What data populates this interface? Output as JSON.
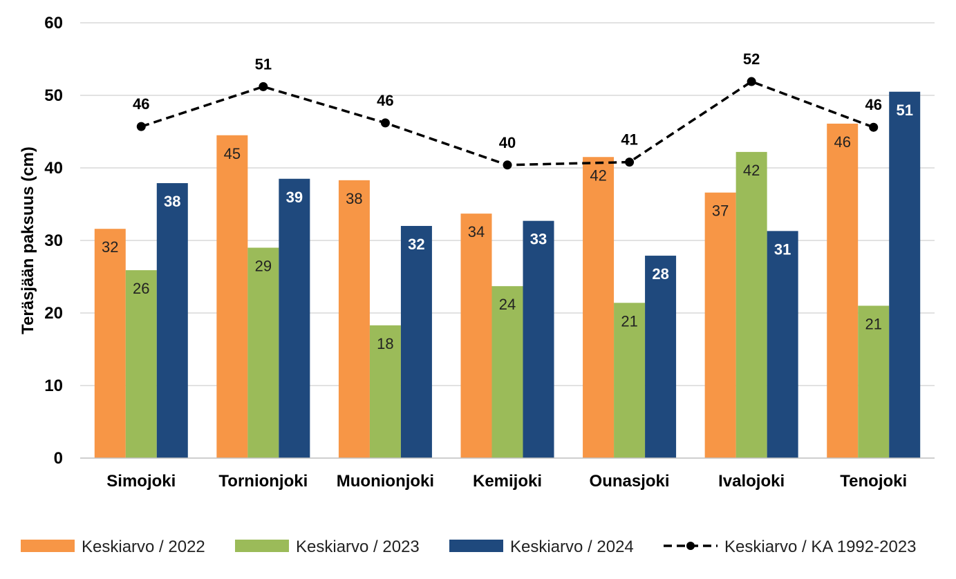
{
  "chart_data": {
    "type": "bar",
    "ylabel": "Teräsjään paksuus (cm)",
    "ylim": [
      0,
      60
    ],
    "yticks": [
      0,
      10,
      20,
      30,
      40,
      50,
      60
    ],
    "grid": true,
    "legend_position": "bottom",
    "categories": [
      "Simojoki",
      "Tornionjoki",
      "Muonionjoki",
      "Kemijoki",
      "Ounasjoki",
      "Ivalojoki",
      "Tenojoki"
    ],
    "series": [
      {
        "name": "Keskiarvo  / 2022",
        "kind": "bar",
        "color": "#F79646",
        "values": [
          31.6,
          44.5,
          38.3,
          33.7,
          41.5,
          36.6,
          46.1
        ],
        "labels": [
          "32",
          "45",
          "38",
          "34",
          "42",
          "37",
          "46"
        ]
      },
      {
        "name": "Keskiarvo  / 2023",
        "kind": "bar",
        "color": "#9BBB59",
        "values": [
          25.9,
          29.0,
          18.3,
          23.7,
          21.4,
          42.2,
          21.0
        ],
        "labels": [
          "26",
          "29",
          "18",
          "24",
          "21",
          "42",
          "21"
        ]
      },
      {
        "name": "Keskiarvo  / 2024",
        "kind": "bar",
        "color": "#1F497D",
        "values": [
          37.9,
          38.5,
          32.0,
          32.7,
          27.9,
          31.3,
          50.5
        ],
        "labels": [
          "38",
          "39",
          "32",
          "33",
          "28",
          "31",
          "51"
        ]
      },
      {
        "name": "Keskiarvo  / KA 1992-2023",
        "kind": "line",
        "color": "#000000",
        "values": [
          45.7,
          51.2,
          46.2,
          40.4,
          40.8,
          51.9,
          45.6
        ],
        "labels": [
          "46",
          "51",
          "46",
          "40",
          "41",
          "52",
          "46"
        ]
      }
    ]
  }
}
